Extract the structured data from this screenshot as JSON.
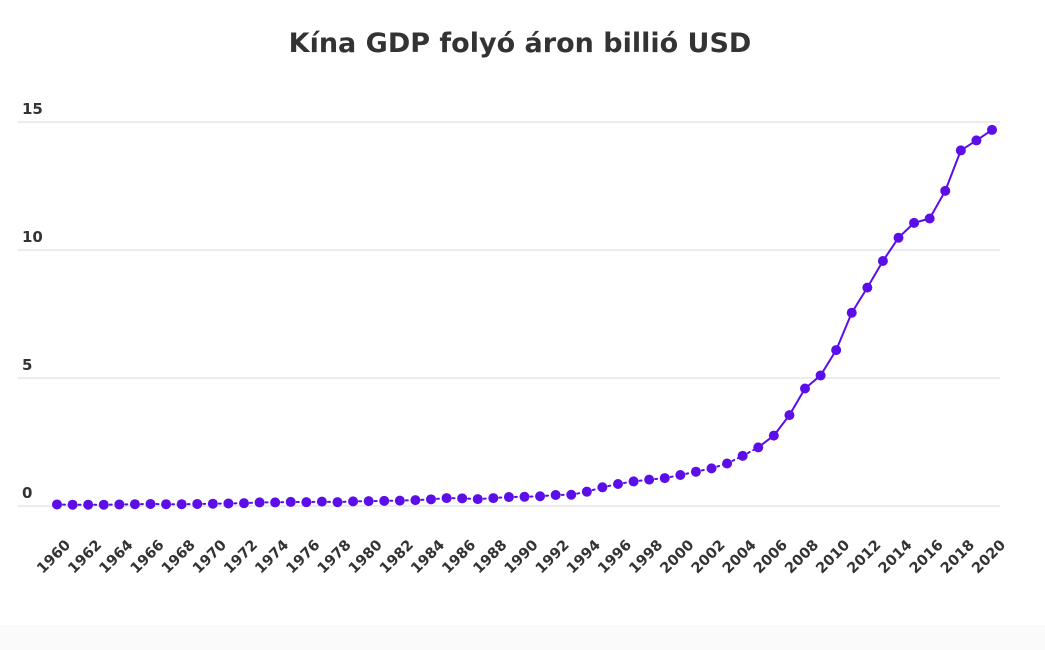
{
  "chart_data": {
    "type": "line",
    "title": "Kína GDP folyó áron billió USD",
    "xlabel": "",
    "ylabel": "",
    "ylim": [
      0,
      15
    ],
    "yticks": [
      "0",
      "5",
      "10",
      "15"
    ],
    "grid": true,
    "legend": "none",
    "colors": {
      "series": "#5b0ee8",
      "grid": "#d9d9d9",
      "text": "#333333"
    },
    "line_style": "dashed before 2006, solid from 2006",
    "x": [
      1960,
      1961,
      1962,
      1963,
      1964,
      1965,
      1966,
      1967,
      1968,
      1969,
      1970,
      1971,
      1972,
      1973,
      1974,
      1975,
      1976,
      1977,
      1978,
      1979,
      1980,
      1981,
      1982,
      1983,
      1984,
      1985,
      1986,
      1987,
      1988,
      1989,
      1990,
      1991,
      1992,
      1993,
      1994,
      1995,
      1996,
      1997,
      1998,
      1999,
      2000,
      2001,
      2002,
      2003,
      2004,
      2005,
      2006,
      2007,
      2008,
      2009,
      2010,
      2011,
      2012,
      2013,
      2014,
      2015,
      2016,
      2017,
      2018,
      2019,
      2020
    ],
    "xtick_labels": [
      "1960",
      "1962",
      "1964",
      "1966",
      "1968",
      "1970",
      "1972",
      "1974",
      "1976",
      "1978",
      "1980",
      "1982",
      "1984",
      "1986",
      "1988",
      "1990",
      "1992",
      "1994",
      "1996",
      "1998",
      "2000",
      "2002",
      "2004",
      "2006",
      "2008",
      "2010",
      "2012",
      "2014",
      "2016",
      "2018",
      "2020"
    ],
    "series": [
      {
        "values": [
          0.06,
          0.05,
          0.05,
          0.05,
          0.06,
          0.07,
          0.08,
          0.07,
          0.07,
          0.08,
          0.09,
          0.1,
          0.11,
          0.14,
          0.14,
          0.16,
          0.15,
          0.17,
          0.15,
          0.18,
          0.19,
          0.2,
          0.21,
          0.23,
          0.26,
          0.31,
          0.3,
          0.27,
          0.31,
          0.35,
          0.36,
          0.38,
          0.43,
          0.44,
          0.56,
          0.73,
          0.86,
          0.96,
          1.03,
          1.09,
          1.21,
          1.34,
          1.47,
          1.66,
          1.96,
          2.29,
          2.75,
          3.55,
          4.59,
          5.1,
          6.09,
          7.55,
          8.53,
          9.57,
          10.48,
          11.06,
          11.23,
          12.31,
          13.89,
          14.28,
          14.69
        ]
      }
    ]
  }
}
